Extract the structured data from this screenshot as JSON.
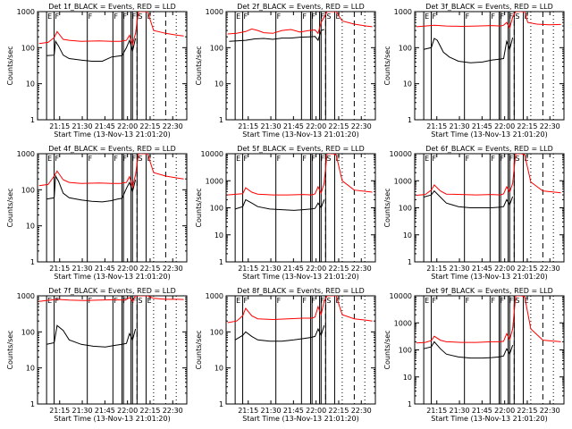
{
  "chart_data": {
    "type": "line",
    "layout": "3x3 grid",
    "shared": {
      "xlabel": "Start Time (13-Nov-13 21:01:20)",
      "ylabel": "Counts/sec",
      "x_tick_labels": [
        "21:15",
        "21:30",
        "21:45",
        "22:00",
        "22:15",
        "22:30"
      ],
      "x_tick_minutes": [
        13.67,
        28.67,
        43.67,
        58.67,
        73.67,
        88.67
      ],
      "xlim_minutes": [
        -1,
        98
      ],
      "yscale": "log",
      "ylim": [
        1,
        1000
      ],
      "y_tick_labels": [
        "1",
        "10",
        "100",
        "1000"
      ],
      "y_tick_values": [
        1,
        10,
        100,
        1000
      ],
      "grid": false,
      "colors": {
        "events": "#000000",
        "lld": "#ff0000",
        "axes": "#000000",
        "background": "#ffffff"
      },
      "marker_labels": {
        "E": "E",
        "F": "F",
        "S": "S"
      },
      "solid_markers": [
        {
          "x": 5,
          "label": "E"
        },
        {
          "x": 10,
          "label": "F"
        },
        {
          "x": 32,
          "label": "F"
        },
        {
          "x": 49,
          "label": "F"
        },
        {
          "x": 55,
          "label": "F"
        },
        {
          "x": 56,
          "label": ""
        },
        {
          "x": 61,
          "label": "F"
        },
        {
          "x": 62,
          "label": ""
        },
        {
          "x": 65,
          "label": "S"
        },
        {
          "x": 71,
          "label": "E"
        }
      ],
      "dashed_markers": [
        65,
        84
      ],
      "dotted_markers": [
        76,
        91
      ]
    },
    "panels": [
      {
        "title": "Det 1f_BLACK = Events, RED = LLD",
        "ylim": [
          1,
          1000
        ],
        "y_tick_labels": [
          "1",
          "10",
          "100",
          "1000"
        ],
        "y_tick_values": [
          1,
          10,
          100,
          1000
        ],
        "series": [
          {
            "name": "Events",
            "color": "#000000",
            "x": [
              5,
              10,
              11,
              13,
              16,
              20,
              28,
              35,
              42,
              48,
              52,
              55,
              58,
              60,
              62,
              64
            ],
            "y": [
              60,
              62,
              150,
              110,
              62,
              50,
              45,
              42,
              42,
              55,
              58,
              60,
              100,
              160,
              80,
              180
            ]
          },
          {
            "name": "LLD",
            "color": "#ff0000",
            "x": [
              0,
              6,
              10,
              12,
              16,
              20,
              28,
              40,
              48,
              54,
              58,
              60,
              62,
              64,
              66,
              70,
              72,
              76,
              84,
              92,
              96
            ],
            "y": [
              130,
              140,
              190,
              280,
              170,
              160,
              150,
              155,
              150,
              150,
              160,
              220,
              120,
              250,
              1000,
              1000,
              1000,
              300,
              250,
              220,
              210
            ]
          }
        ]
      },
      {
        "title": "Det 2f_BLACK = Events, RED = LLD",
        "ylim": [
          1,
          1000
        ],
        "y_tick_labels": [
          "1",
          "10",
          "100",
          "1000"
        ],
        "y_tick_values": [
          1,
          10,
          100,
          1000
        ],
        "series": [
          {
            "name": "Events",
            "color": "#000000",
            "x": [
              1,
              6,
              12,
              18,
              24,
              30,
              36,
              42,
              48,
              54,
              58,
              60,
              62,
              64
            ],
            "y": [
              150,
              155,
              160,
              175,
              180,
              170,
              185,
              185,
              195,
              200,
              205,
              160,
              300,
              320
            ]
          },
          {
            "name": "LLD",
            "color": "#ff0000",
            "x": [
              0,
              6,
              12,
              16,
              20,
              24,
              30,
              36,
              42,
              48,
              54,
              58,
              60,
              62,
              64,
              66,
              70,
              72,
              76,
              84,
              92,
              96
            ],
            "y": [
              240,
              250,
              280,
              330,
              300,
              260,
              250,
              300,
              320,
              270,
              300,
              310,
              250,
              500,
              700,
              1000,
              1000,
              1000,
              550,
              450,
              400,
              380
            ]
          }
        ]
      },
      {
        "title": "Det 3f_BLACK = Events, RED = LLD",
        "ylim": [
          1,
          1000
        ],
        "y_tick_labels": [
          "1",
          "10",
          "100",
          "1000"
        ],
        "y_tick_values": [
          1,
          10,
          100,
          1000
        ],
        "series": [
          {
            "name": "Events",
            "color": "#000000",
            "x": [
              5,
              10,
              12,
              14,
              18,
              22,
              28,
              36,
              44,
              50,
              55,
              58,
              60,
              62,
              64
            ],
            "y": [
              90,
              100,
              180,
              160,
              75,
              55,
              42,
              38,
              40,
              45,
              48,
              50,
              150,
              90,
              190
            ]
          },
          {
            "name": "LLD",
            "color": "#ff0000",
            "x": [
              0,
              6,
              12,
              20,
              30,
              40,
              50,
              56,
              58,
              60,
              62,
              64,
              66,
              70,
              72,
              74,
              80,
              88,
              96
            ],
            "y": [
              380,
              400,
              420,
              400,
              390,
              400,
              410,
              400,
              420,
              500,
              350,
              700,
              1000,
              1000,
              1000,
              500,
              450,
              430,
              440
            ]
          }
        ]
      },
      {
        "title": "Det 4f_BLACK = Events, RED = LLD",
        "ylim": [
          1,
          1000
        ],
        "y_tick_labels": [
          "1",
          "10",
          "100",
          "1000"
        ],
        "y_tick_values": [
          1,
          10,
          100,
          1000
        ],
        "series": [
          {
            "name": "Events",
            "color": "#000000",
            "x": [
              5,
              10,
              11,
              13,
              16,
              20,
              28,
              35,
              42,
              48,
              52,
              55,
              58,
              60,
              62,
              64
            ],
            "y": [
              55,
              60,
              240,
              170,
              80,
              60,
              52,
              48,
              46,
              50,
              55,
              58,
              110,
              160,
              90,
              190
            ]
          },
          {
            "name": "LLD",
            "color": "#ff0000",
            "x": [
              0,
              6,
              10,
              12,
              16,
              20,
              28,
              40,
              48,
              54,
              58,
              60,
              62,
              64,
              66,
              70,
              72,
              76,
              84,
              92,
              96
            ],
            "y": [
              130,
              140,
              240,
              330,
              190,
              160,
              150,
              155,
              150,
              150,
              160,
              230,
              120,
              260,
              1000,
              1000,
              1000,
              300,
              240,
              210,
              200
            ]
          }
        ]
      },
      {
        "title": "Det 5f_BLACK = Events, RED = LLD",
        "ylim": [
          1,
          10000
        ],
        "y_tick_labels": [
          "1",
          "10",
          "100",
          "1000",
          "10000"
        ],
        "y_tick_values": [
          1,
          10,
          100,
          1000,
          10000
        ],
        "series": [
          {
            "name": "Events",
            "color": "#000000",
            "x": [
              5,
              10,
              12,
              16,
              20,
              28,
              36,
              44,
              50,
              55,
              58,
              60,
              62,
              64
            ],
            "y": [
              90,
              110,
              200,
              150,
              110,
              90,
              85,
              80,
              85,
              90,
              95,
              150,
              100,
              200
            ]
          },
          {
            "name": "LLD",
            "color": "#ff0000",
            "x": [
              0,
              6,
              10,
              12,
              16,
              20,
              30,
              40,
              50,
              56,
              58,
              60,
              62,
              64,
              66,
              70,
              72,
              76,
              84,
              92,
              96
            ],
            "y": [
              300,
              320,
              330,
              550,
              380,
              320,
              300,
              300,
              310,
              300,
              330,
              600,
              350,
              800,
              10000,
              10000,
              9000,
              1000,
              450,
              400,
              380
            ]
          }
        ]
      },
      {
        "title": "Det 6f_BLACK = Events, RED = LLD",
        "ylim": [
          1,
          10000
        ],
        "y_tick_labels": [
          "1",
          "10",
          "100",
          "1000",
          "10000"
        ],
        "y_tick_values": [
          1,
          10,
          100,
          1000,
          10000
        ],
        "series": [
          {
            "name": "Events",
            "color": "#000000",
            "x": [
              5,
              10,
              12,
              16,
              20,
              28,
              36,
              44,
              50,
              55,
              58,
              60,
              62,
              64
            ],
            "y": [
              250,
              300,
              420,
              250,
              150,
              110,
              100,
              100,
              100,
              105,
              110,
              200,
              130,
              260
            ]
          },
          {
            "name": "LLD",
            "color": "#ff0000",
            "x": [
              0,
              6,
              10,
              12,
              16,
              20,
              30,
              40,
              50,
              56,
              58,
              60,
              62,
              64,
              66,
              70,
              72,
              76,
              84,
              92,
              96
            ],
            "y": [
              290,
              310,
              450,
              700,
              420,
              320,
              310,
              300,
              310,
              300,
              330,
              600,
              380,
              800,
              10000,
              10000,
              9000,
              900,
              420,
              380,
              360
            ]
          }
        ]
      },
      {
        "title": "Det 7f_BLACK = Events, RED = LLD",
        "ylim": [
          1,
          1000
        ],
        "y_tick_labels": [
          "1",
          "10",
          "100",
          "1000"
        ],
        "y_tick_values": [
          1,
          10,
          100,
          1000
        ],
        "series": [
          {
            "name": "Events",
            "color": "#000000",
            "x": [
              5,
              10,
              12,
              16,
              20,
              28,
              36,
              44,
              50,
              55,
              58,
              60,
              62,
              64
            ],
            "y": [
              45,
              50,
              150,
              110,
              60,
              45,
              40,
              38,
              42,
              45,
              48,
              90,
              60,
              120
            ]
          },
          {
            "name": "LLD",
            "color": "#ff0000",
            "x": [
              0,
              6,
              12,
              20,
              30,
              40,
              50,
              56,
              58,
              60,
              62,
              64,
              66,
              70,
              72,
              76,
              84,
              92,
              96
            ],
            "y": [
              700,
              750,
              800,
              760,
              740,
              760,
              780,
              760,
              800,
              900,
              700,
              1000,
              1000,
              1000,
              1000,
              850,
              800,
              800,
              790
            ]
          }
        ]
      },
      {
        "title": "Det 8f_BLACK = Events, RED = LLD",
        "ylim": [
          1,
          1000
        ],
        "y_tick_labels": [
          "1",
          "10",
          "100",
          "1000"
        ],
        "y_tick_values": [
          1,
          10,
          100,
          1000
        ],
        "series": [
          {
            "name": "Events",
            "color": "#000000",
            "x": [
              5,
              10,
              12,
              16,
              20,
              28,
              36,
              44,
              50,
              55,
              58,
              60,
              62,
              64
            ],
            "y": [
              60,
              80,
              100,
              75,
              60,
              55,
              55,
              60,
              65,
              70,
              75,
              120,
              80,
              150
            ]
          },
          {
            "name": "LLD",
            "color": "#ff0000",
            "x": [
              0,
              6,
              10,
              12,
              16,
              20,
              30,
              40,
              50,
              56,
              58,
              60,
              62,
              64,
              66,
              70,
              72,
              76,
              84,
              92,
              96
            ],
            "y": [
              180,
              200,
              280,
              450,
              280,
              230,
              220,
              230,
              240,
              240,
              260,
              500,
              300,
              700,
              1000,
              1000,
              1000,
              300,
              230,
              210,
              200
            ]
          }
        ]
      },
      {
        "title": "Det 9f_BLACK = Events, RED = LLD",
        "ylim": [
          1,
          10000
        ],
        "y_tick_labels": [
          "1",
          "10",
          "100",
          "1000",
          "10000"
        ],
        "y_tick_values": [
          1,
          10,
          100,
          1000,
          10000
        ],
        "series": [
          {
            "name": "Events",
            "color": "#000000",
            "x": [
              5,
              10,
              12,
              16,
              20,
              28,
              36,
              44,
              50,
              55,
              58,
              60,
              62,
              64
            ],
            "y": [
              110,
              130,
              200,
              110,
              70,
              55,
              50,
              50,
              52,
              55,
              60,
              110,
              70,
              150
            ]
          },
          {
            "name": "LLD",
            "color": "#ff0000",
            "x": [
              0,
              6,
              10,
              12,
              16,
              20,
              30,
              40,
              50,
              56,
              58,
              60,
              62,
              64,
              66,
              70,
              72,
              76,
              84,
              92,
              96
            ],
            "y": [
              180,
              190,
              220,
              320,
              230,
              200,
              190,
              190,
              200,
              200,
              210,
              400,
              240,
              600,
              10000,
              10000,
              9000,
              600,
              230,
              210,
              200
            ]
          }
        ]
      }
    ]
  }
}
